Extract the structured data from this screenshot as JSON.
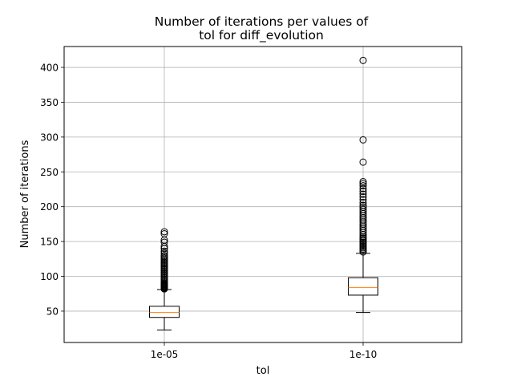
{
  "chart_data": {
    "type": "boxplot",
    "title_lines": [
      "Number of iterations per values of",
      "tol for diff_evolution"
    ],
    "xlabel": "tol",
    "ylabel": "Number of iterations",
    "categories": [
      "1e-05",
      "1e-10"
    ],
    "ylim": [
      5,
      430
    ],
    "yticks": [
      50,
      100,
      150,
      200,
      250,
      300,
      350,
      400
    ],
    "grid": true,
    "boxes": [
      {
        "category": "1e-05",
        "whisker_low": 23,
        "q1": 41,
        "median": 48,
        "q3": 57,
        "whisker_high": 81,
        "outliers": [
          82,
          83,
          84,
          85,
          86,
          87,
          88,
          89,
          90,
          92,
          94,
          96,
          98,
          100,
          102,
          104,
          106,
          108,
          110,
          112,
          114,
          116,
          118,
          120,
          122,
          124,
          126,
          128,
          130,
          133,
          136,
          140,
          143,
          149,
          152,
          161,
          164
        ]
      },
      {
        "category": "1e-10",
        "whisker_low": 48,
        "q1": 73,
        "median": 84,
        "q3": 98,
        "whisker_high": 133,
        "outliers": [
          135,
          137,
          139,
          141,
          143,
          145,
          147,
          149,
          151,
          153,
          155,
          157,
          160,
          163,
          166,
          169,
          172,
          175,
          178,
          181,
          184,
          187,
          190,
          193,
          196,
          199,
          202,
          206,
          210,
          214,
          218,
          222,
          226,
          230,
          233,
          236,
          264,
          296,
          410
        ]
      }
    ],
    "colors": {
      "median": "#ff7f0e",
      "box": "#000000",
      "grid": "#b0b0b0"
    }
  }
}
